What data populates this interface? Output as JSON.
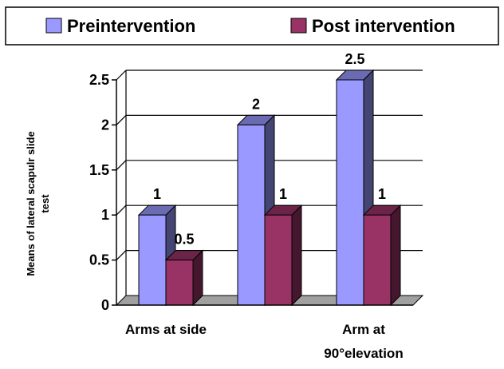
{
  "chart_data": {
    "type": "bar",
    "categories": [
      "Arms at side",
      "",
      "Arm at\n90°elevation"
    ],
    "category_lines": [
      [
        "Arms at side"
      ],
      [],
      [
        "Arm at",
        "90°elevation"
      ]
    ],
    "series": [
      {
        "name": "Preintervention",
        "values": [
          1,
          2,
          2.5
        ],
        "color": "#9999ff"
      },
      {
        "name": "Post intervention",
        "values": [
          0.5,
          1,
          1
        ],
        "color": "#993366"
      }
    ],
    "data_labels": [
      [
        "1",
        "2",
        "2.5"
      ],
      [
        "0.5",
        "1",
        "1"
      ]
    ],
    "ylabel_lines": [
      "Means of lateral scapulr slide",
      "test"
    ],
    "ylim": [
      0,
      2.5
    ],
    "yticks": [
      "0",
      "0.5",
      "1",
      "1.5",
      "2",
      "2.5"
    ],
    "ytick_values": [
      0,
      0.5,
      1,
      1.5,
      2,
      2.5
    ],
    "grid": true,
    "legend_position": "top",
    "style": "3d-bar"
  }
}
